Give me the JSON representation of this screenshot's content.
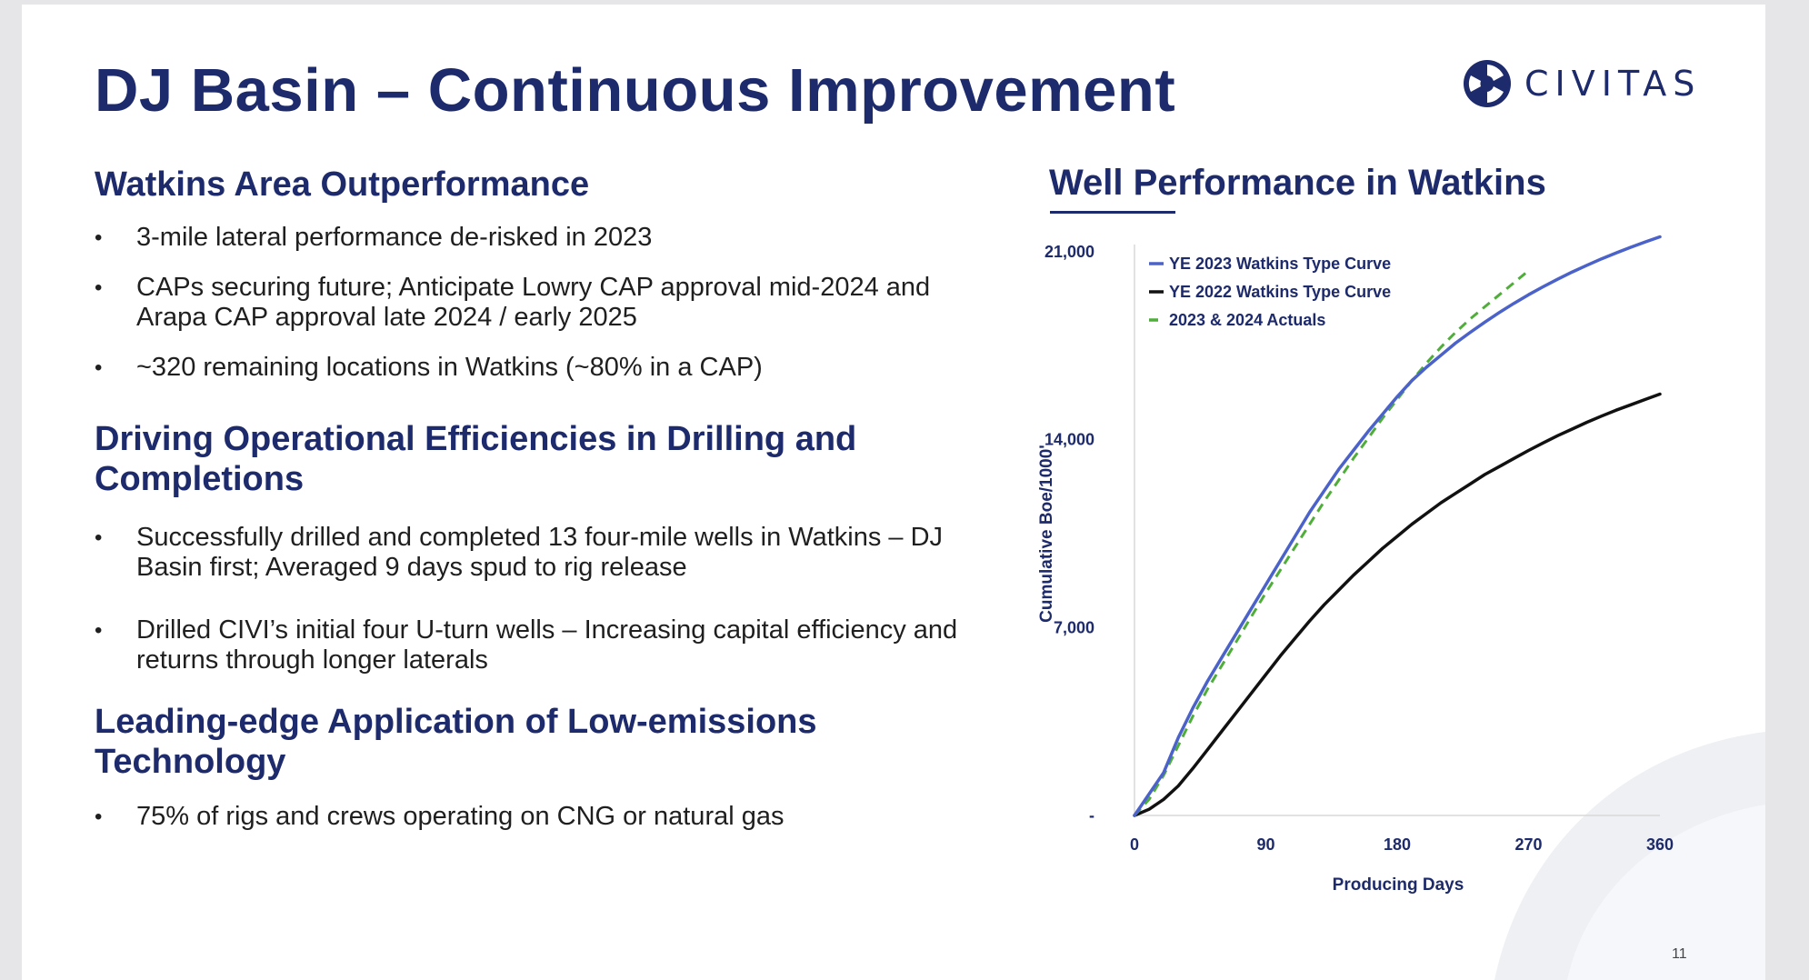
{
  "slide": {
    "title": "DJ Basin – Continuous Improvement",
    "logo_text": "CIVITAS",
    "page_number": "11"
  },
  "sections": [
    {
      "heading": "Watkins Area Outperformance",
      "bullets": [
        "3-mile lateral performance de-risked in 2023",
        "CAPs securing future; Anticipate Lowry CAP approval mid-2024 and Arapa CAP approval late 2024 / early 2025",
        "~320 remaining locations in Watkins (~80% in a CAP)"
      ]
    },
    {
      "heading": "Driving Operational Efficiencies in Drilling and Completions",
      "bullets": [
        "Successfully drilled and completed 13 four-mile wells in Watkins – DJ Basin first; Averaged 9 days spud to rig release",
        "Drilled CIVI’s initial four U-turn wells – Increasing capital efficiency and returns through longer laterals"
      ]
    },
    {
      "heading": "Leading-edge Application of Low-emissions Technology",
      "bullets": [
        "75% of rigs and crews operating on CNG or natural gas"
      ]
    }
  ],
  "colors": {
    "brand_navy": "#1d2a6b",
    "series_2023": "#4a62c9",
    "series_2022": "#111111",
    "series_actuals": "#4fae3a"
  },
  "chart_data": {
    "type": "line",
    "title": "Well Performance in Watkins",
    "xlabel": "Producing Days",
    "ylabel": "Cumulative Boe/1000'",
    "xlim": [
      0,
      360
    ],
    "ylim": [
      0,
      21000
    ],
    "x_ticks": [
      "0",
      "90",
      "180",
      "270",
      "360"
    ],
    "x_tick_values": [
      0,
      90,
      180,
      270,
      360
    ],
    "y_ticks": [
      "-",
      "7,000",
      "14,000",
      "21,000"
    ],
    "y_tick_values": [
      0,
      7000,
      14000,
      21000
    ],
    "legend_position": "top-left",
    "series": [
      {
        "name": "YE 2023 Watkins Type Curve",
        "color": "#4a62c9",
        "style": "solid",
        "x": [
          0,
          10,
          20,
          30,
          40,
          50,
          60,
          70,
          80,
          90,
          100,
          110,
          120,
          130,
          140,
          150,
          160,
          170,
          180,
          190,
          200,
          210,
          220,
          230,
          240,
          250,
          260,
          270,
          280,
          290,
          300,
          310,
          320,
          330,
          340,
          350,
          360
        ],
        "values": [
          0,
          800,
          1600,
          2900,
          4000,
          5000,
          5900,
          6800,
          7700,
          8600,
          9500,
          10400,
          11300,
          12100,
          12900,
          13600,
          14300,
          14950,
          15600,
          16200,
          16700,
          17150,
          17600,
          18000,
          18380,
          18740,
          19080,
          19400,
          19700,
          19980,
          20250,
          20500,
          20740,
          20960,
          21170,
          21370,
          21560
        ]
      },
      {
        "name": "YE 2022 Watkins Type Curve",
        "color": "#111111",
        "style": "solid",
        "x": [
          0,
          10,
          20,
          30,
          40,
          50,
          60,
          70,
          80,
          90,
          100,
          110,
          120,
          130,
          140,
          150,
          160,
          170,
          180,
          190,
          200,
          210,
          220,
          230,
          240,
          250,
          260,
          270,
          280,
          290,
          300,
          310,
          320,
          330,
          340,
          350,
          360
        ],
        "values": [
          0,
          230,
          600,
          1100,
          1750,
          2450,
          3150,
          3850,
          4550,
          5250,
          5950,
          6600,
          7250,
          7850,
          8400,
          8950,
          9450,
          9950,
          10400,
          10850,
          11250,
          11650,
          12000,
          12350,
          12700,
          13000,
          13300,
          13600,
          13880,
          14150,
          14400,
          14650,
          14880,
          15100,
          15300,
          15500,
          15700
        ]
      },
      {
        "name": "2023 & 2024 Actuals",
        "color": "#4fae3a",
        "style": "dashed",
        "x": [
          0,
          10,
          20,
          30,
          40,
          50,
          60,
          70,
          80,
          90,
          100,
          110,
          120,
          130,
          140,
          150,
          160,
          170,
          180,
          190,
          200,
          210,
          220,
          230,
          240,
          250,
          260,
          270
        ],
        "values": [
          0,
          600,
          1500,
          2600,
          3700,
          4700,
          5600,
          6500,
          7400,
          8300,
          9150,
          10000,
          10850,
          11700,
          12500,
          13300,
          14050,
          14800,
          15500,
          16200,
          16850,
          17450,
          18000,
          18500,
          18950,
          19400,
          19850,
          20300
        ]
      }
    ]
  }
}
